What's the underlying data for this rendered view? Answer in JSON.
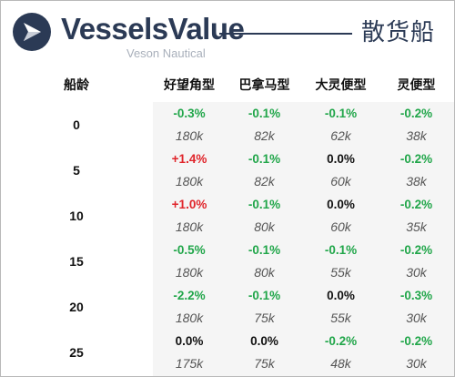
{
  "header": {
    "brand": "VesselsValue",
    "brand_sub": "Veson Nautical",
    "title": "散货船"
  },
  "table": {
    "age_header": "船龄",
    "columns": [
      "好望角型",
      "巴拿马型",
      "大灵便型",
      "灵便型"
    ],
    "rows": [
      {
        "age": "0",
        "changes": [
          "-0.3%",
          "-0.1%",
          "-0.1%",
          "-0.2%"
        ],
        "trend": [
          "neg",
          "neg",
          "neg",
          "neg"
        ],
        "values": [
          "180k",
          "82k",
          "62k",
          "38k"
        ]
      },
      {
        "age": "5",
        "changes": [
          "+1.4%",
          "-0.1%",
          "0.0%",
          "-0.2%"
        ],
        "trend": [
          "pos",
          "neg",
          "zero",
          "neg"
        ],
        "values": [
          "180k",
          "82k",
          "60k",
          "38k"
        ]
      },
      {
        "age": "10",
        "changes": [
          "+1.0%",
          "-0.1%",
          "0.0%",
          "-0.2%"
        ],
        "trend": [
          "pos",
          "neg",
          "zero",
          "neg"
        ],
        "values": [
          "180k",
          "80k",
          "60k",
          "35k"
        ]
      },
      {
        "age": "15",
        "changes": [
          "-0.5%",
          "-0.1%",
          "-0.1%",
          "-0.2%"
        ],
        "trend": [
          "neg",
          "neg",
          "neg",
          "neg"
        ],
        "values": [
          "180k",
          "80k",
          "55k",
          "30k"
        ]
      },
      {
        "age": "20",
        "changes": [
          "-2.2%",
          "-0.1%",
          "0.0%",
          "-0.3%"
        ],
        "trend": [
          "neg",
          "neg",
          "zero",
          "neg"
        ],
        "values": [
          "180k",
          "75k",
          "55k",
          "30k"
        ]
      },
      {
        "age": "25",
        "changes": [
          "0.0%",
          "0.0%",
          "-0.2%",
          "-0.2%"
        ],
        "trend": [
          "zero",
          "zero",
          "neg",
          "neg"
        ],
        "values": [
          "175k",
          "75k",
          "48k",
          "30k"
        ]
      }
    ]
  },
  "colors": {
    "brand": "#2b3a55",
    "positive": "#e0242a",
    "negative": "#21a64a",
    "neutral": "#111111",
    "table_bg": "#f5f5f5"
  },
  "icons": {
    "logo": "vesselsvalue-logo-icon"
  }
}
